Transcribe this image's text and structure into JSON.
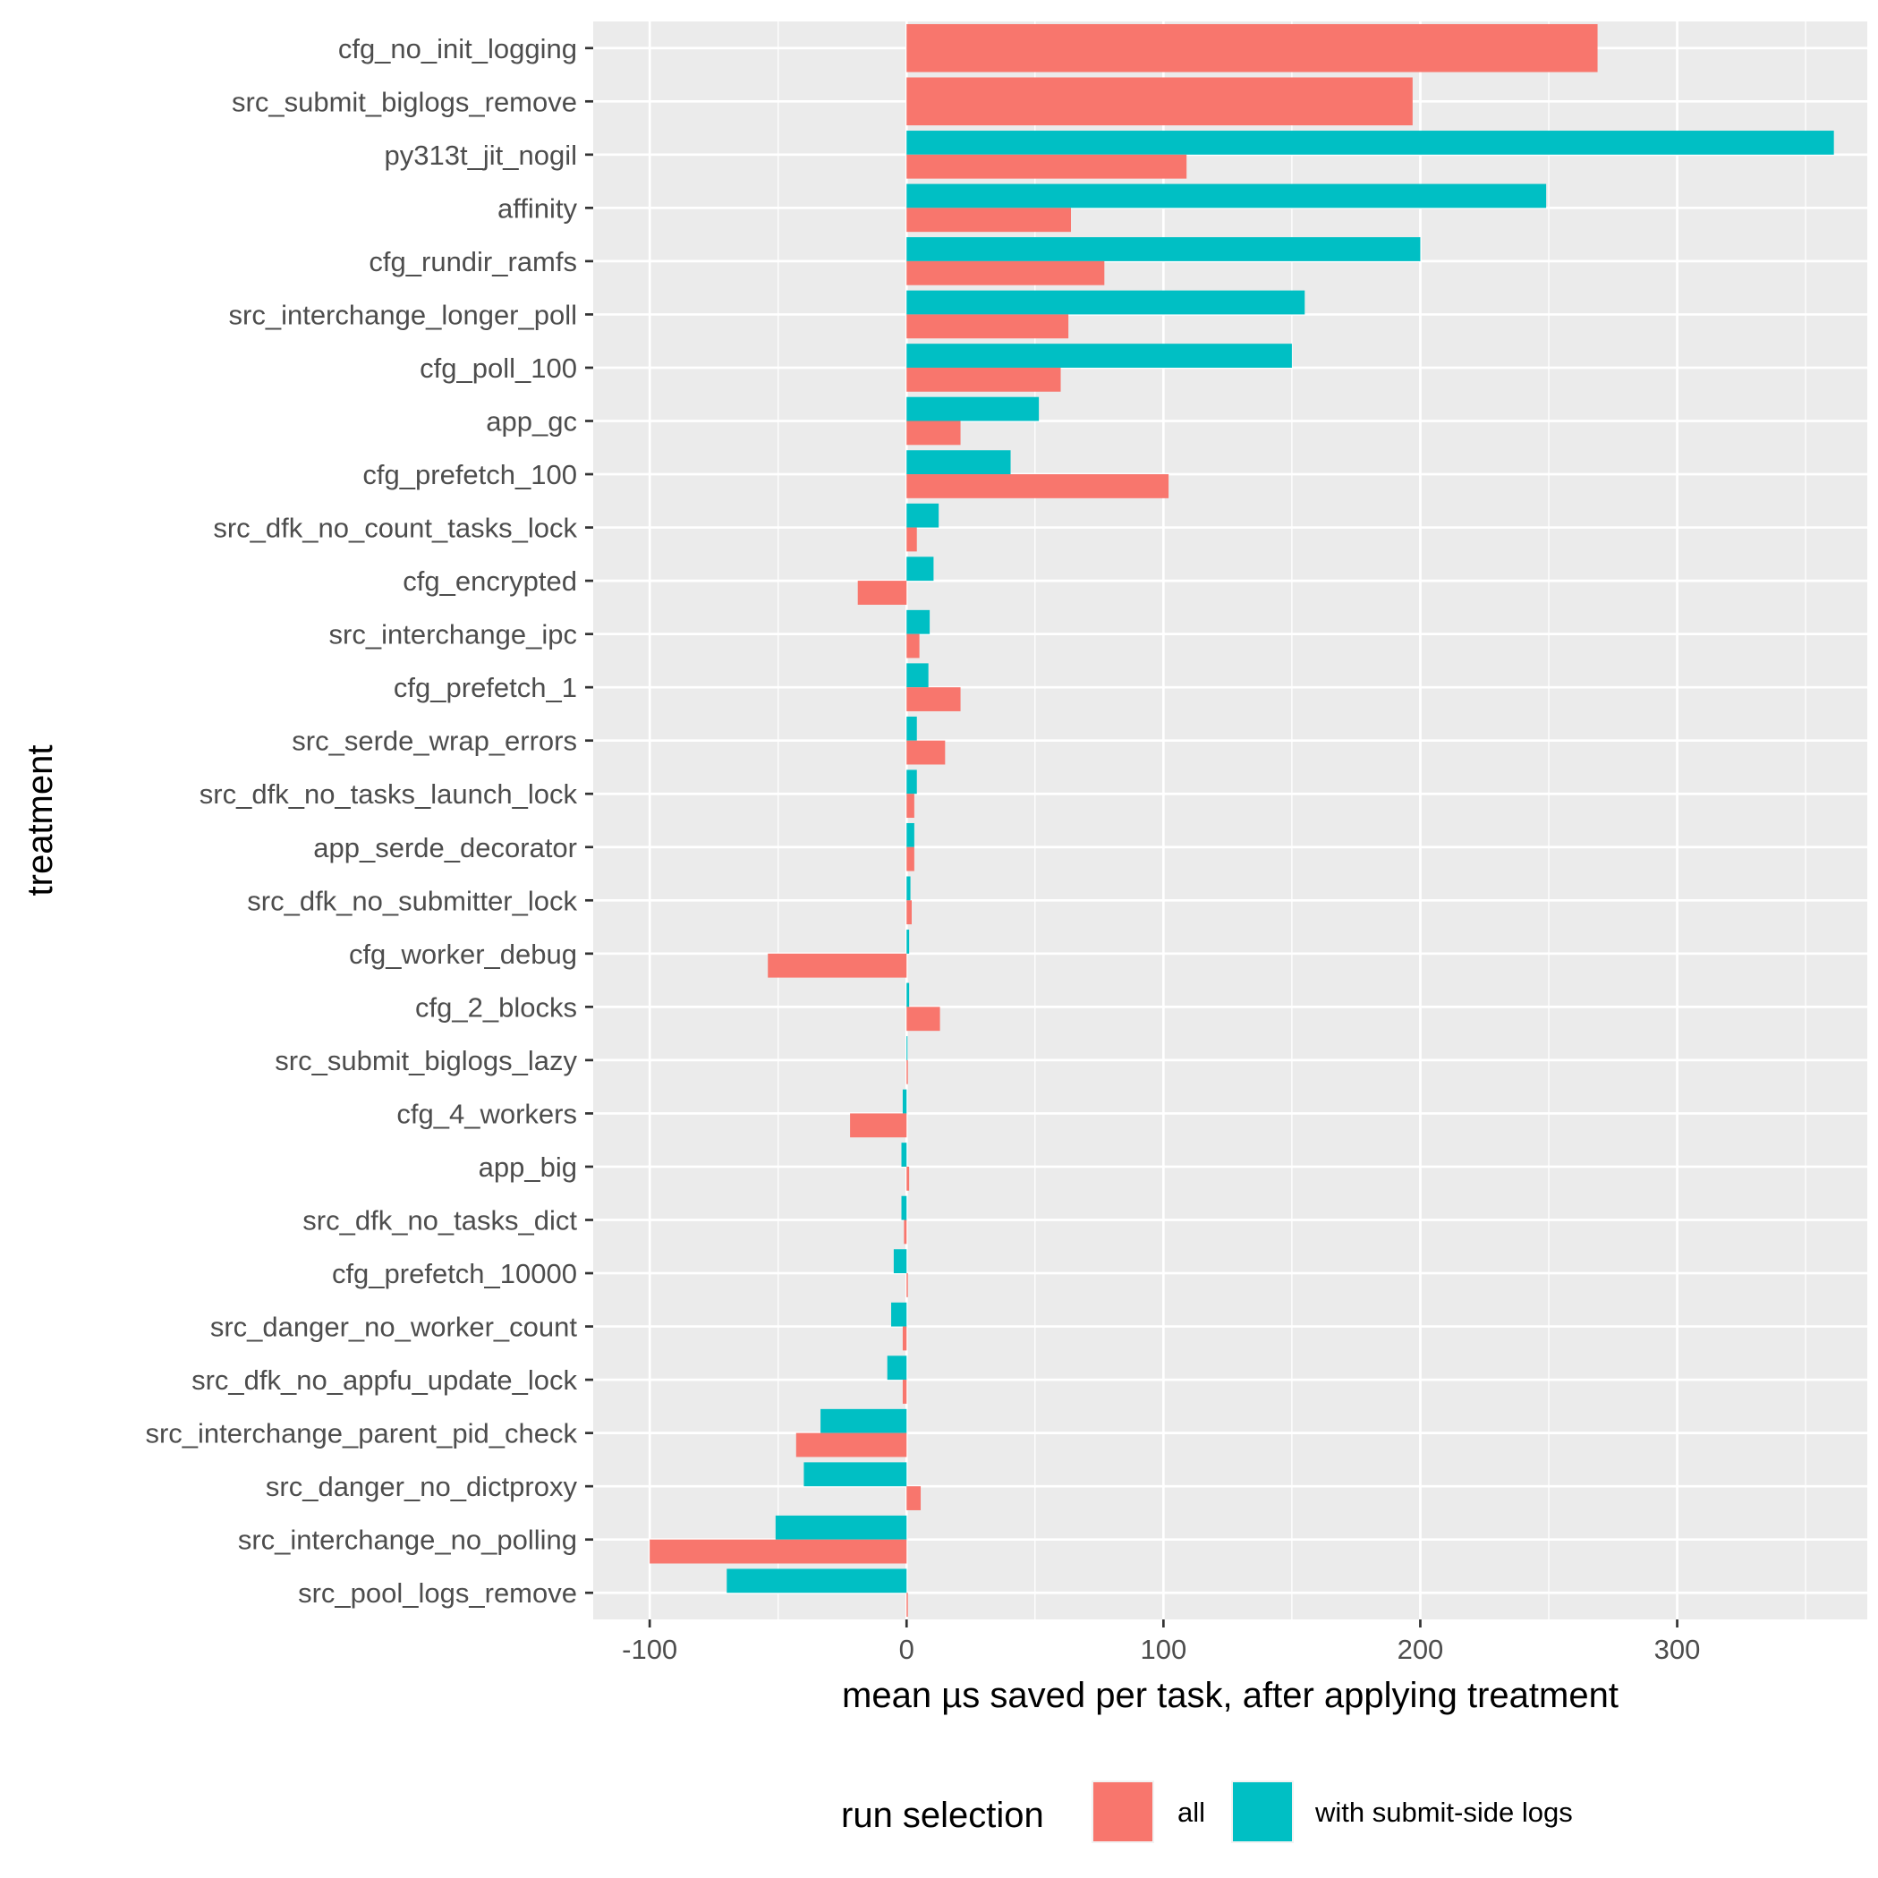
{
  "chart_data": {
    "type": "bar",
    "orientation": "horizontal",
    "title": "",
    "xlabel": "mean µs saved per task, after applying treatment",
    "ylabel": "treatment",
    "xlim": [
      -122,
      374
    ],
    "xticks": [
      -100,
      0,
      100,
      200,
      300
    ],
    "xtick_labels": [
      "-100",
      "0",
      "100",
      "200",
      "300"
    ],
    "grid": true,
    "legend": {
      "title": "run selection",
      "position": "bottom",
      "entries": [
        {
          "name": "all",
          "color": "#F8766D"
        },
        {
          "name": "with submit-side logs",
          "color": "#00BFC4"
        }
      ]
    },
    "categories": [
      "cfg_no_init_logging",
      "src_submit_biglogs_remove",
      "py313t_jit_nogil",
      "affinity",
      "cfg_rundir_ramfs",
      "src_interchange_longer_poll",
      "cfg_poll_100",
      "app_gc",
      "cfg_prefetch_100",
      "src_dfk_no_count_tasks_lock",
      "cfg_encrypted",
      "src_interchange_ipc",
      "cfg_prefetch_1",
      "src_serde_wrap_errors",
      "src_dfk_no_tasks_launch_lock",
      "app_serde_decorator",
      "src_dfk_no_submitter_lock",
      "cfg_worker_debug",
      "cfg_2_blocks",
      "src_submit_biglogs_lazy",
      "cfg_4_workers",
      "app_big",
      "src_dfk_no_tasks_dict",
      "cfg_prefetch_10000",
      "src_danger_no_worker_count",
      "src_dfk_no_appfu_update_lock",
      "src_interchange_parent_pid_check",
      "src_danger_no_dictproxy",
      "src_interchange_no_polling",
      "src_pool_logs_remove"
    ],
    "series": [
      {
        "name": "all",
        "color": "#F8766D",
        "values": [
          269,
          197,
          109,
          64,
          77,
          63,
          60,
          21,
          102,
          4,
          -19,
          5,
          21,
          15,
          3,
          3,
          2,
          -54,
          13,
          0.5,
          -22,
          1,
          -1,
          0.5,
          -1.5,
          -1.5,
          -43,
          5.5,
          -100,
          0.5
        ]
      },
      {
        "name": "with submit-side logs",
        "color": "#00BFC4",
        "values": [
          null,
          null,
          361,
          249,
          200,
          155,
          150,
          51.5,
          40.5,
          12.5,
          10.5,
          9,
          8.5,
          4,
          4,
          3,
          1.5,
          1,
          1,
          0.3,
          -1.5,
          -2,
          -2,
          -5,
          -6,
          -7.5,
          -33.5,
          -40,
          -51,
          -70
        ]
      }
    ]
  }
}
